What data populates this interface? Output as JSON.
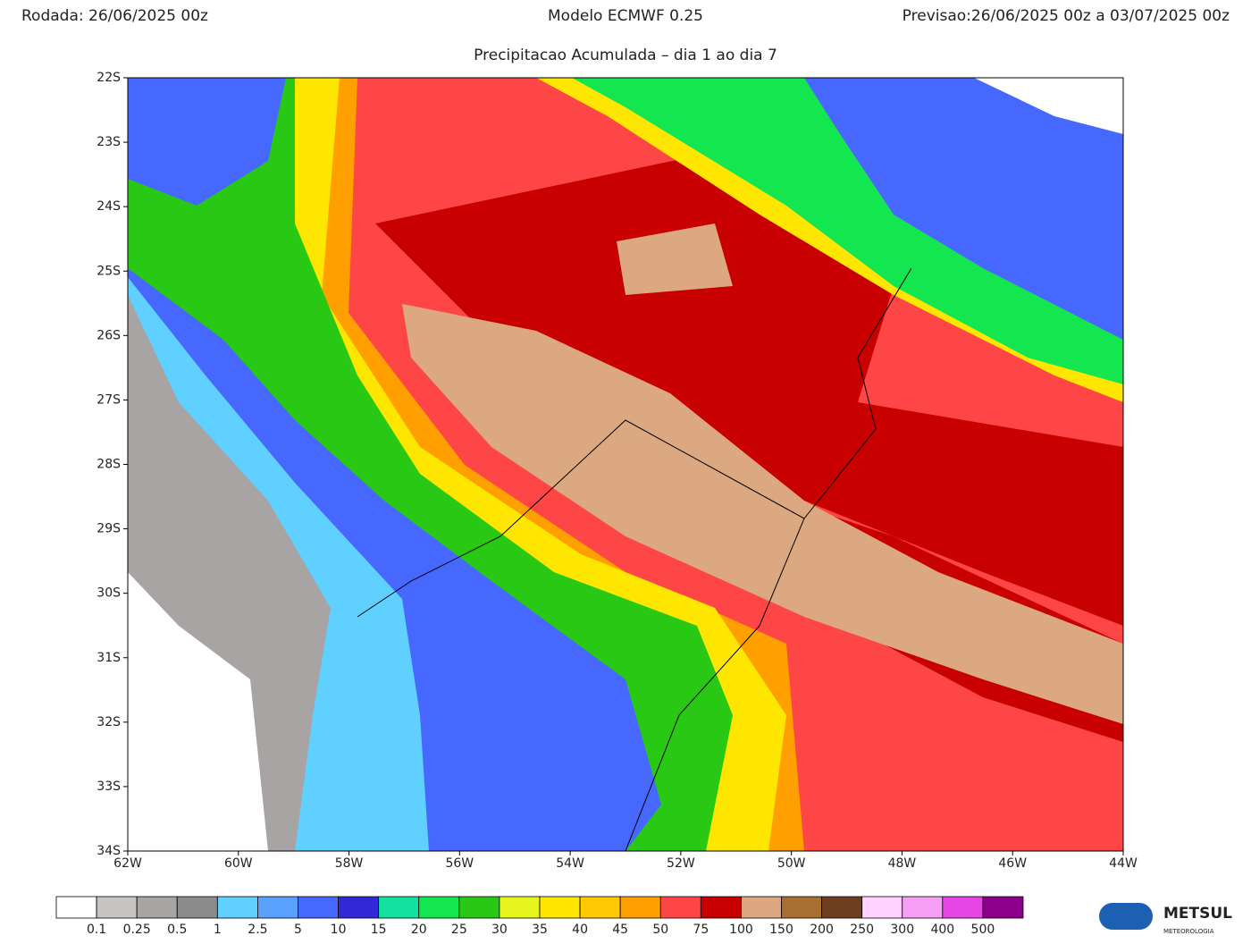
{
  "header": {
    "run": "Rodada: 26/06/2025 00z",
    "model": "Modelo ECMWF 0.25",
    "forecast": "Previsao:26/06/2025 00z a 03/07/2025 00z",
    "subtitle": "Precipitacao Acumulada – dia 1 ao dia 7"
  },
  "map": {
    "lat_labels": [
      "22S",
      "23S",
      "24S",
      "25S",
      "26S",
      "27S",
      "28S",
      "29S",
      "30S",
      "31S",
      "32S",
      "33S",
      "34S"
    ],
    "lon_labels": [
      "62W",
      "60W",
      "58W",
      "56W",
      "54W",
      "52W",
      "50W",
      "48W",
      "46W",
      "44W"
    ]
  },
  "colorbar": {
    "colors": [
      "#ffffff",
      "#c8c4c4",
      "#a8a4a4",
      "#8c8c8c",
      "#5fd0ff",
      "#5aa0ff",
      "#4668ff",
      "#3228d8",
      "#14e0a0",
      "#14e650",
      "#28c814",
      "#e6f51e",
      "#ffe600",
      "#ffc800",
      "#ffa000",
      "#ff4646",
      "#c80000",
      "#dca882",
      "#a86e32",
      "#6e3c1e",
      "#ffd2ff",
      "#f5a0f5",
      "#e646e6",
      "#8c008c"
    ],
    "labels": [
      0.1,
      0.25,
      0.5,
      1,
      2.5,
      5,
      10,
      15,
      20,
      25,
      30,
      35,
      40,
      45,
      50,
      75,
      100,
      150,
      200,
      250,
      300,
      400,
      500
    ]
  },
  "logo": {
    "name": "METSUL",
    "tagline": "METEOROLOGIA"
  }
}
